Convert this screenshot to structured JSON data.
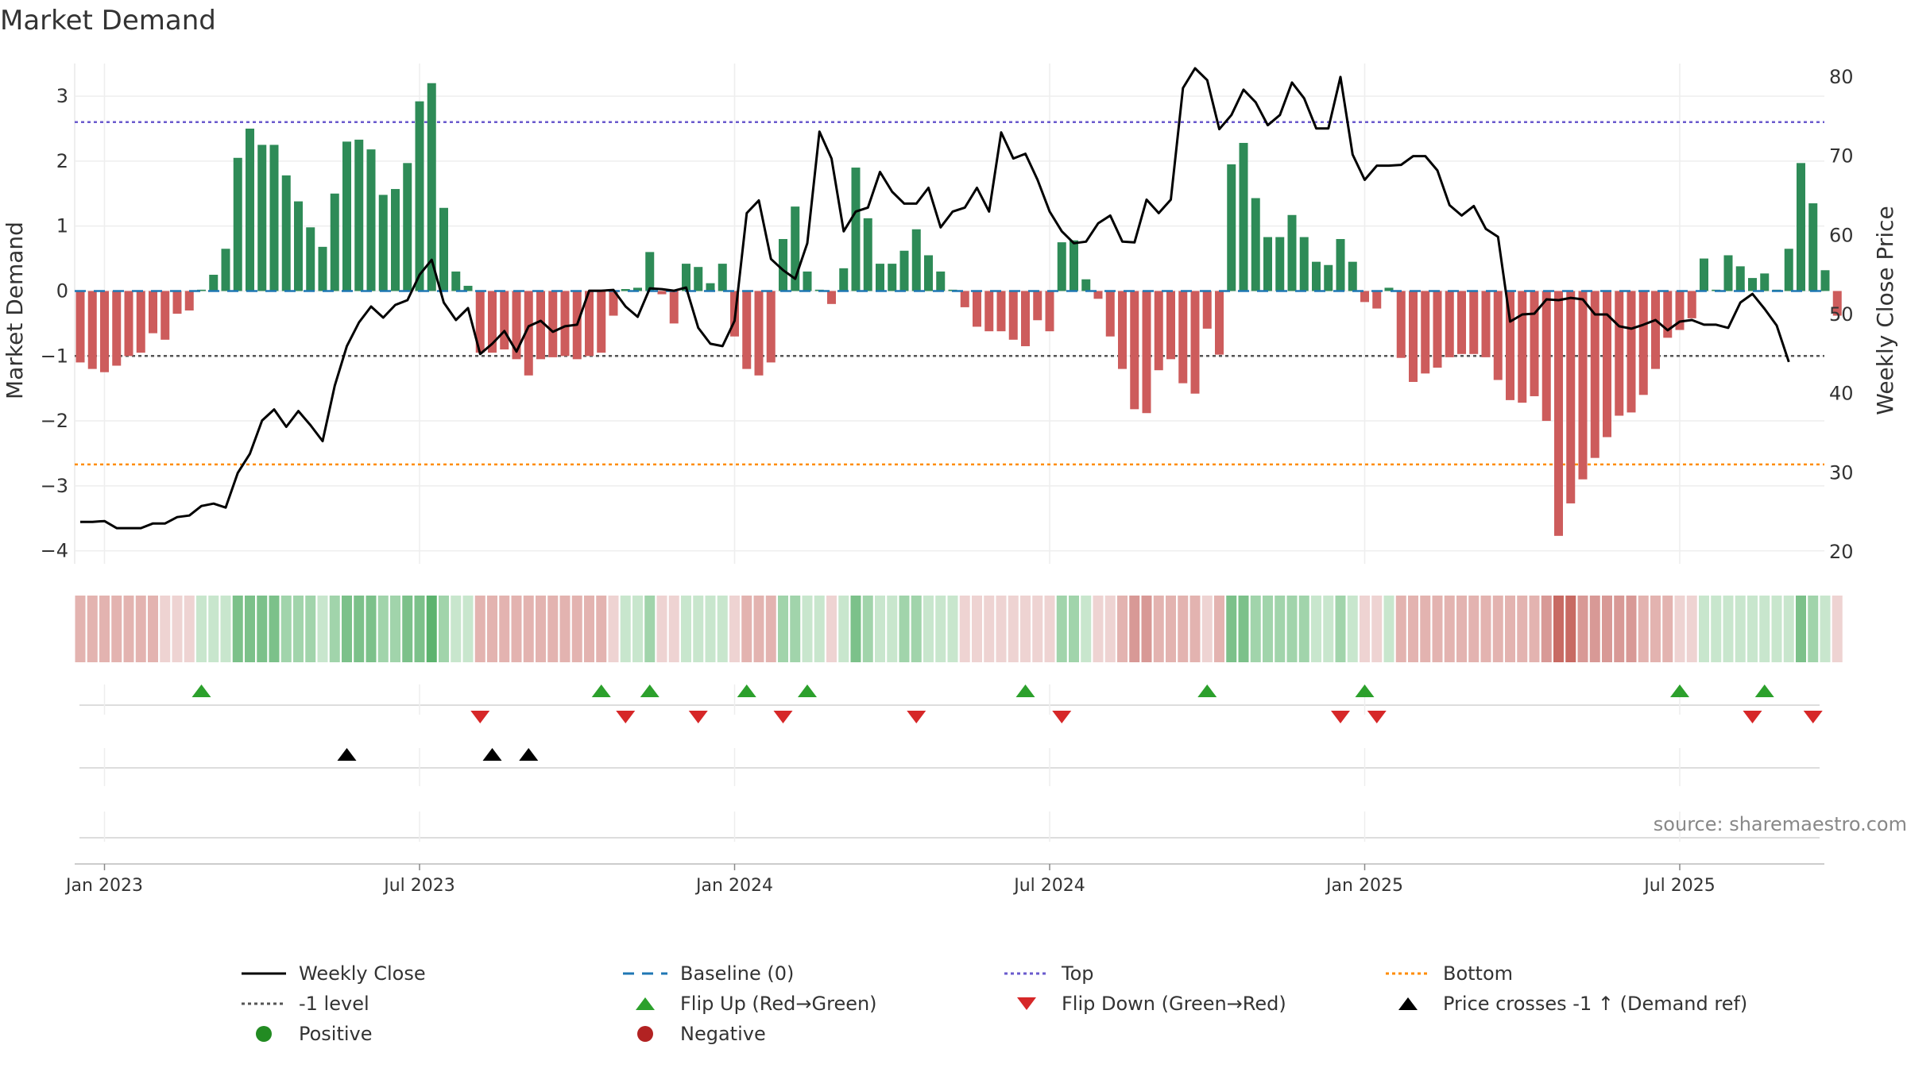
{
  "title": "Market Demand",
  "source": "source: sharemaestro.com",
  "colors": {
    "positive": "#2e8b57",
    "negative": "#cd5c5c",
    "price": "#000000",
    "baseline": "#1f77b4",
    "top": "#6a5acd",
    "bottom": "#ff8c00",
    "minus1": "#555555",
    "flip_up": "#2ca02c",
    "flip_down": "#d62728",
    "cross": "#000000",
    "dot_positive": "#228b22",
    "dot_negative": "#b22222"
  },
  "chart_data": {
    "type": "bar",
    "title": "Market Demand",
    "ylabel": "Market Demand",
    "y2label": "Weekly Close Price",
    "ylim": [
      -4.2,
      3.6
    ],
    "y2lim": [
      18.5,
      82.5
    ],
    "yticks": [
      3,
      2,
      1,
      0,
      -1,
      -2,
      -3,
      -4
    ],
    "yticklabels": [
      "3",
      "2",
      "1",
      "0",
      "−1",
      "−2",
      "−3",
      "−4"
    ],
    "y2ticks": [
      80,
      70,
      60,
      50,
      40,
      30,
      20
    ],
    "x_start": "Jan 2023",
    "xticks": [
      {
        "week": 2,
        "label": "Jan 2023"
      },
      {
        "week": 28,
        "label": "Jul 2023"
      },
      {
        "week": 54,
        "label": "Jan 2024"
      },
      {
        "week": 80,
        "label": "Jul 2024"
      },
      {
        "week": 106,
        "label": "Jan 2025"
      },
      {
        "week": 132,
        "label": "Jul 2025"
      }
    ],
    "reference_lines": {
      "top": 2.6,
      "bottom": -2.67,
      "minus1": -1.0,
      "baseline": 0
    },
    "demand": [
      -1.1,
      -1.2,
      -1.25,
      -1.15,
      -1.0,
      -0.95,
      -0.65,
      -0.75,
      -0.35,
      -0.3,
      0.02,
      0.25,
      0.65,
      2.05,
      2.5,
      2.25,
      2.25,
      1.78,
      1.38,
      0.98,
      0.68,
      1.5,
      2.3,
      2.33,
      2.18,
      1.48,
      1.57,
      1.97,
      2.92,
      3.2,
      1.28,
      0.3,
      0.08,
      -0.95,
      -0.95,
      -0.9,
      -1.05,
      -1.3,
      -1.05,
      -1.02,
      -1.0,
      -1.05,
      -1.0,
      -0.95,
      -0.38,
      0.03,
      0.05,
      0.6,
      -0.05,
      -0.5,
      0.42,
      0.37,
      0.12,
      0.42,
      -0.7,
      -1.2,
      -1.3,
      -1.1,
      0.8,
      1.3,
      0.3,
      0.02,
      -0.2,
      0.35,
      1.9,
      1.12,
      0.42,
      0.42,
      0.62,
      0.95,
      0.55,
      0.3,
      0.02,
      -0.25,
      -0.55,
      -0.62,
      -0.62,
      -0.75,
      -0.85,
      -0.45,
      -0.62,
      0.75,
      0.78,
      0.18,
      -0.12,
      -0.7,
      -1.2,
      -1.82,
      -1.88,
      -1.22,
      -1.05,
      -1.42,
      -1.58,
      -0.58,
      -0.98,
      1.95,
      2.28,
      1.43,
      0.83,
      0.83,
      1.17,
      0.83,
      0.45,
      0.4,
      0.8,
      0.45,
      -0.17,
      -0.27,
      0.05,
      -1.03,
      -1.4,
      -1.27,
      -1.18,
      -1.02,
      -0.97,
      -0.97,
      -1.02,
      -1.37,
      -1.68,
      -1.72,
      -1.62,
      -2.0,
      -3.77,
      -3.27,
      -2.9,
      -2.57,
      -2.25,
      -1.92,
      -1.87,
      -1.6,
      -1.2,
      -0.72,
      -0.6,
      -0.42,
      0.5,
      0.02,
      0.55,
      0.38,
      0.2,
      0.27,
      0.02,
      0.65,
      1.97,
      1.35,
      0.32,
      -0.38
    ],
    "weekly_close": [
      23.8,
      23.8,
      23.9,
      23.0,
      23.0,
      23.0,
      23.6,
      23.6,
      24.4,
      24.6,
      25.8,
      26.1,
      25.6,
      30.0,
      32.4,
      36.6,
      38.0,
      35.8,
      37.8,
      36.0,
      34.0,
      41.0,
      46.0,
      49.0,
      51.0,
      49.6,
      51.2,
      51.8,
      55.0,
      56.9,
      51.5,
      49.3,
      50.8,
      45.0,
      46.3,
      47.9,
      45.3,
      48.5,
      49.2,
      47.8,
      48.5,
      48.7,
      53.0,
      53.0,
      53.1,
      51.0,
      49.7,
      53.3,
      53.2,
      53.0,
      53.4,
      48.3,
      46.3,
      46.0,
      49.2,
      62.8,
      64.4,
      57.0,
      55.6,
      54.5,
      59.0,
      73.1,
      69.7,
      60.5,
      63.0,
      63.5,
      68.0,
      65.5,
      64.0,
      64.0,
      66.0,
      61.0,
      63.0,
      63.5,
      66.0,
      63.0,
      73.0,
      69.7,
      70.3,
      67.0,
      63.0,
      60.5,
      59.0,
      59.2,
      61.5,
      62.5,
      59.2,
      59.1,
      64.5,
      62.8,
      64.5,
      78.6,
      81.1,
      79.6,
      73.4,
      75.2,
      78.4,
      76.8,
      73.9,
      75.2,
      79.3,
      77.3,
      73.5,
      73.5,
      80.0,
      70.2,
      67.0,
      68.8,
      68.8,
      68.9,
      70.0,
      70.0,
      68.2,
      63.8,
      62.5,
      63.7,
      60.8,
      59.8,
      49.1,
      50.0,
      50.1,
      51.9,
      51.8,
      52.1,
      51.9,
      50.0,
      50.0,
      48.5,
      48.2,
      48.7,
      49.3,
      48.0,
      49.1,
      49.3,
      48.7,
      48.7,
      48.3,
      51.5,
      52.6,
      50.7,
      48.6,
      44.0
    ],
    "heat_band": [
      -2,
      -2,
      -2,
      -2,
      -2,
      -2,
      -2,
      -1,
      -1,
      -1,
      1,
      1,
      1,
      3,
      3,
      3,
      3,
      2,
      2,
      2,
      1,
      2,
      3,
      3,
      3,
      2,
      2,
      3,
      3,
      4,
      2,
      1,
      1,
      -2,
      -2,
      -2,
      -2,
      -2,
      -2,
      -2,
      -2,
      -2,
      -2,
      -2,
      -1,
      1,
      1,
      2,
      -1,
      -1,
      1,
      1,
      1,
      1,
      -1,
      -2,
      -2,
      -2,
      2,
      2,
      1,
      1,
      -1,
      1,
      3,
      2,
      1,
      1,
      2,
      2,
      1,
      1,
      1,
      -1,
      -1,
      -1,
      -1,
      -1,
      -1,
      -1,
      -1,
      2,
      2,
      1,
      -1,
      -1,
      -2,
      -3,
      -3,
      -2,
      -2,
      -2,
      -2,
      -1,
      -2,
      3,
      3,
      2,
      2,
      2,
      2,
      2,
      1,
      1,
      2,
      1,
      -1,
      -1,
      1,
      -2,
      -2,
      -2,
      -2,
      -2,
      -2,
      -2,
      -2,
      -2,
      -2,
      -2,
      -2,
      -3,
      -4,
      -4,
      -3,
      -3,
      -3,
      -3,
      -3,
      -2,
      -2,
      -2,
      -1,
      -1,
      1,
      1,
      1,
      1,
      1,
      1,
      1,
      1,
      3,
      2,
      1,
      -1
    ],
    "flip_up_weeks": [
      10,
      43,
      47,
      55,
      60,
      78,
      93,
      106,
      132,
      139
    ],
    "flip_down_weeks": [
      33,
      45,
      51,
      58,
      69,
      81,
      104,
      107,
      138,
      143
    ],
    "price_cross_weeks": [
      22,
      34,
      37
    ]
  },
  "legend": [
    {
      "label": "Weekly Close",
      "symbol": "line-solid",
      "color": "#000000"
    },
    {
      "label": "Baseline (0)",
      "symbol": "line-dashed",
      "color": "#1f77b4"
    },
    {
      "label": "Top",
      "symbol": "line-dotted",
      "color": "#6a5acd"
    },
    {
      "label": "Bottom",
      "symbol": "line-dotted",
      "color": "#ff8c00"
    },
    {
      "label": "-1 level",
      "symbol": "line-dotted",
      "color": "#555555"
    },
    {
      "label": "Flip Up (Red→Green)",
      "symbol": "triangle-up",
      "color": "#2ca02c"
    },
    {
      "label": "Flip Down (Green→Red)",
      "symbol": "triangle-down",
      "color": "#d62728"
    },
    {
      "label": "Price crosses -1 ↑ (Demand ref)",
      "symbol": "triangle-up",
      "color": "#000000"
    },
    {
      "label": "Positive",
      "symbol": "circle",
      "color": "#228b22"
    },
    {
      "label": "Negative",
      "symbol": "circle",
      "color": "#b22222"
    }
  ]
}
